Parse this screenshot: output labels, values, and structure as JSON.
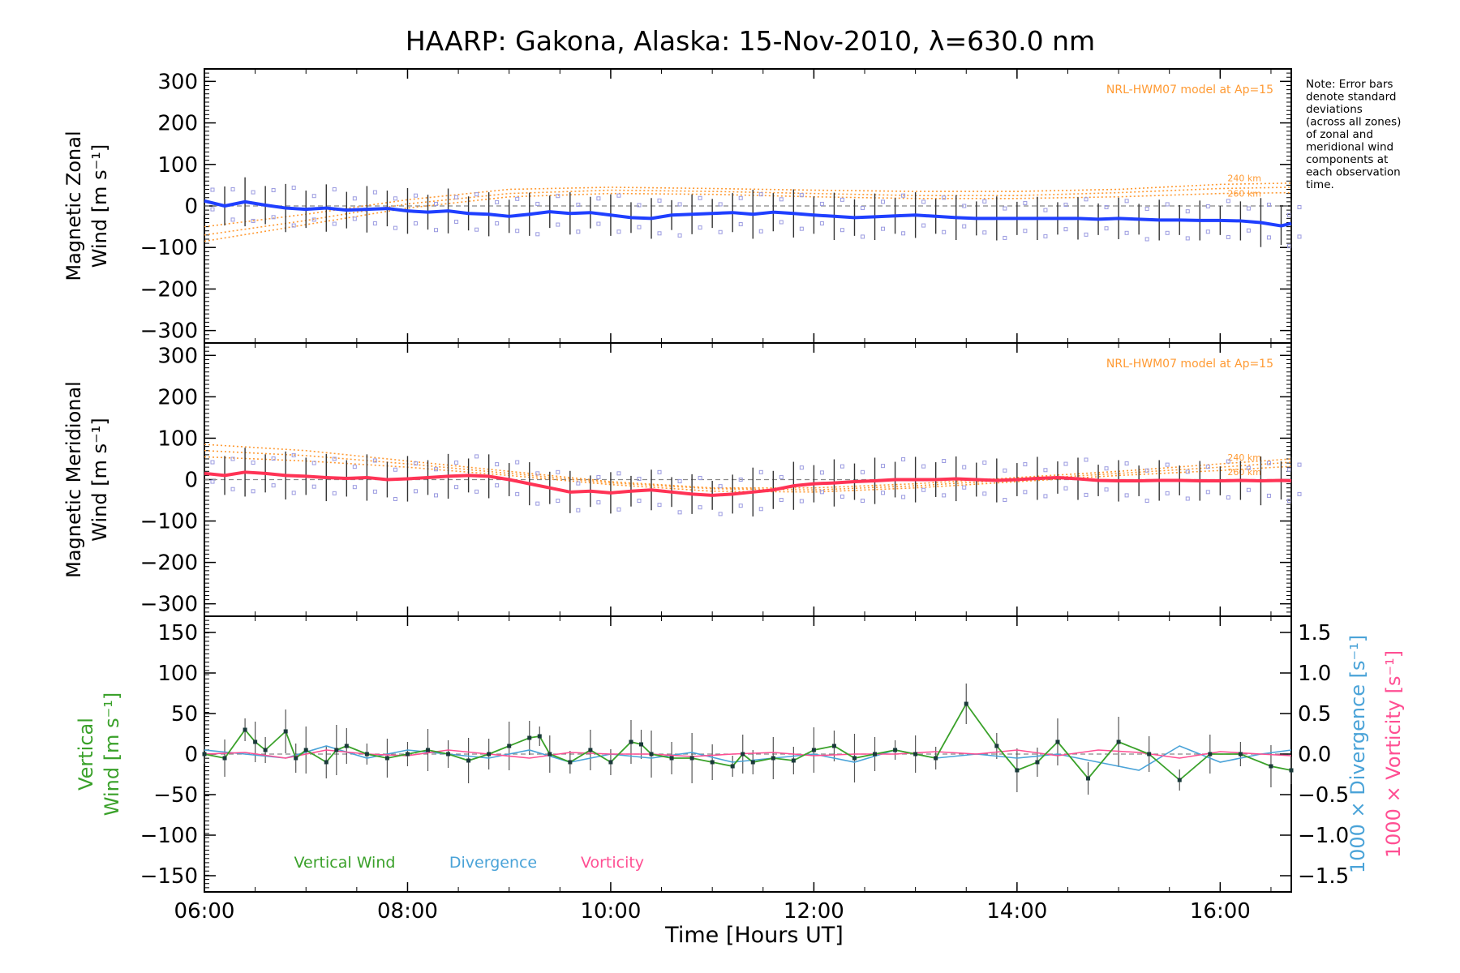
{
  "title": "HAARP: Gakona,  Alaska: 15-Nov-2010, λ=630.0 nm",
  "note": [
    "Note: Error bars",
    "denote standard",
    "deviations",
    "(across all zones)",
    "of zonal and",
    "meridional wind",
    "components at",
    "each observation",
    "time."
  ],
  "xlabel": "Time [Hours UT]",
  "colors": {
    "zonal": "#1f3fff",
    "meridional": "#ff3355",
    "vertical": "#3aa12a",
    "divergence": "#4aa3d8",
    "vorticity": "#ff4f93",
    "model": "#ff9a33",
    "scatter": "#9a9ae0",
    "errorbar": "#333333"
  },
  "chart_data": [
    {
      "type": "line",
      "panel": "zonal",
      "ylabel_lines": [
        "Magnetic Zonal",
        "Wind [m s⁻¹]"
      ],
      "xlim": [
        6.0,
        16.7
      ],
      "ylim": [
        -330,
        330
      ],
      "x_tick_labels": [
        "06:00",
        "08:00",
        "10:00",
        "12:00",
        "14:00",
        "16:00"
      ],
      "y_tick_labels": [
        "300",
        "200",
        "100",
        "0",
        "−100",
        "−200",
        "−300"
      ],
      "annotation": "NRL-HWM07 model at Ap=15",
      "model_labels": [
        "240 km",
        "260 km"
      ],
      "series": [
        {
          "name": "",
          "x": [
            6.0,
            6.2,
            6.4,
            6.6,
            6.8,
            7.0,
            7.2,
            7.4,
            7.6,
            7.8,
            8.0,
            8.2,
            8.4,
            8.6,
            8.8,
            9.0,
            9.2,
            9.4,
            9.6,
            9.8,
            10.0,
            10.2,
            10.4,
            10.6,
            10.8,
            11.0,
            11.2,
            11.4,
            11.6,
            11.8,
            12.0,
            12.2,
            12.4,
            12.6,
            12.8,
            13.0,
            13.2,
            13.4,
            13.6,
            13.8,
            14.0,
            14.2,
            14.4,
            14.6,
            14.8,
            15.0,
            15.2,
            15.4,
            15.6,
            15.8,
            16.0,
            16.2,
            16.4,
            16.6,
            16.7
          ],
          "values": [
            12,
            0,
            10,
            2,
            -5,
            -8,
            -5,
            -10,
            -8,
            -6,
            -12,
            -15,
            -12,
            -18,
            -20,
            -25,
            -20,
            -14,
            -18,
            -16,
            -22,
            -28,
            -30,
            -22,
            -20,
            -18,
            -16,
            -20,
            -15,
            -18,
            -22,
            -25,
            -28,
            -26,
            -24,
            -22,
            -25,
            -28,
            -30,
            -30,
            -30,
            -30,
            -30,
            -30,
            -32,
            -30,
            -32,
            -34,
            -34,
            -35,
            -35,
            -36,
            -40,
            -48,
            -42
          ]
        }
      ],
      "model": {
        "x": [
          6.0,
          7.0,
          8.0,
          9.0,
          10.0,
          11.0,
          12.0,
          13.0,
          14.0,
          15.0,
          16.0,
          16.7
        ],
        "curves": [
          {
            "name": "240 km",
            "values": [
              -50,
              -20,
              15,
              40,
              45,
              42,
              38,
              35,
              35,
              40,
              52,
              55
            ]
          },
          {
            "name": "260 km",
            "values": [
              -70,
              -35,
              5,
              30,
              38,
              35,
              30,
              25,
              25,
              32,
              42,
              45
            ]
          },
          {
            "name": "",
            "values": [
              -85,
              -45,
              -5,
              22,
              30,
              28,
              22,
              18,
              18,
              22,
              30,
              32
            ]
          }
        ]
      }
    },
    {
      "type": "line",
      "panel": "meridional",
      "ylabel_lines": [
        "Magnetic Meridional",
        "Wind [m s⁻¹]"
      ],
      "xlim": [
        6.0,
        16.7
      ],
      "ylim": [
        -330,
        330
      ],
      "y_tick_labels": [
        "300",
        "200",
        "100",
        "0",
        "−100",
        "−200",
        "−300"
      ],
      "annotation": "NRL-HWM07 model at Ap=15",
      "model_labels": [
        "240 km",
        "260 km"
      ],
      "series": [
        {
          "name": "",
          "x": [
            6.0,
            6.2,
            6.4,
            6.6,
            6.8,
            7.0,
            7.2,
            7.4,
            7.6,
            7.8,
            8.0,
            8.2,
            8.4,
            8.6,
            8.8,
            9.0,
            9.2,
            9.4,
            9.6,
            9.8,
            10.0,
            10.2,
            10.4,
            10.6,
            10.8,
            11.0,
            11.2,
            11.4,
            11.6,
            11.8,
            12.0,
            12.2,
            12.4,
            12.6,
            12.8,
            13.0,
            13.2,
            13.4,
            13.6,
            13.8,
            14.0,
            14.2,
            14.4,
            14.6,
            14.8,
            15.0,
            15.2,
            15.4,
            15.6,
            15.8,
            16.0,
            16.2,
            16.4,
            16.6,
            16.7
          ],
          "values": [
            15,
            10,
            18,
            15,
            10,
            8,
            5,
            3,
            5,
            0,
            2,
            5,
            8,
            10,
            8,
            0,
            -10,
            -20,
            -30,
            -28,
            -32,
            -28,
            -25,
            -30,
            -35,
            -38,
            -35,
            -30,
            -25,
            -15,
            -10,
            -8,
            -5,
            -3,
            0,
            0,
            0,
            2,
            0,
            -2,
            0,
            3,
            5,
            2,
            -2,
            -3,
            -3,
            -2,
            -2,
            -3,
            -3,
            -2,
            -3,
            -2,
            -3
          ]
        }
      ],
      "model": {
        "x": [
          6.0,
          7.0,
          8.0,
          9.0,
          10.0,
          11.0,
          12.0,
          13.0,
          14.0,
          15.0,
          16.0,
          16.7
        ],
        "curves": [
          {
            "name": "240 km",
            "values": [
              85,
              70,
              45,
              20,
              -5,
              -20,
              -20,
              -10,
              5,
              20,
              38,
              50
            ]
          },
          {
            "name": "260 km",
            "values": [
              70,
              58,
              38,
              15,
              -8,
              -22,
              -25,
              -15,
              0,
              15,
              30,
              42
            ]
          },
          {
            "name": "",
            "values": [
              55,
              45,
              30,
              10,
              -12,
              -28,
              -30,
              -20,
              -5,
              10,
              22,
              32
            ]
          }
        ]
      }
    },
    {
      "type": "line",
      "panel": "vertical",
      "ylabel_lines": [
        "Vertical",
        "Wind [m s⁻¹]"
      ],
      "y2label_lines": [
        "1000 × Divergence [s⁻¹]",
        "1000 × Vorticity [s⁻¹]"
      ],
      "xlim": [
        6.0,
        16.7
      ],
      "ylim": [
        -170,
        170
      ],
      "y2lim": [
        -1.7,
        1.7
      ],
      "y_tick_labels": [
        "150",
        "100",
        "50",
        "0",
        "−50",
        "−100",
        "−150"
      ],
      "y2_tick_labels": [
        "1.5",
        "1.0",
        "0.5",
        "0.0",
        "−0.5",
        "−1.0",
        "−1.5"
      ],
      "legend": [
        "Vertical Wind",
        "Divergence",
        "Vorticity"
      ],
      "series": [
        {
          "name": "Vertical Wind",
          "x": [
            6.0,
            6.2,
            6.4,
            6.5,
            6.6,
            6.8,
            6.9,
            7.0,
            7.2,
            7.3,
            7.4,
            7.6,
            7.8,
            8.0,
            8.2,
            8.4,
            8.6,
            8.8,
            9.0,
            9.2,
            9.3,
            9.4,
            9.6,
            9.8,
            10.0,
            10.2,
            10.3,
            10.4,
            10.6,
            10.8,
            11.0,
            11.2,
            11.3,
            11.4,
            11.6,
            11.8,
            12.0,
            12.2,
            12.4,
            12.6,
            12.8,
            13.0,
            13.2,
            13.5,
            13.8,
            14.0,
            14.2,
            14.4,
            14.7,
            15.0,
            15.3,
            15.6,
            15.9,
            16.2,
            16.5,
            16.7
          ],
          "values": [
            0,
            -5,
            30,
            15,
            5,
            28,
            -5,
            5,
            -10,
            5,
            10,
            0,
            -5,
            0,
            5,
            0,
            -8,
            0,
            10,
            20,
            22,
            0,
            -10,
            5,
            -10,
            15,
            12,
            0,
            -5,
            -5,
            -10,
            -15,
            0,
            -10,
            -5,
            -8,
            5,
            10,
            -5,
            0,
            5,
            0,
            -5,
            62,
            10,
            -20,
            -10,
            15,
            -30,
            15,
            0,
            -32,
            0,
            0,
            -15,
            -20
          ]
        },
        {
          "name": "Divergence",
          "x": [
            6.0,
            6.4,
            6.8,
            7.2,
            7.6,
            8.0,
            8.4,
            8.8,
            9.2,
            9.6,
            10.0,
            10.4,
            10.8,
            11.2,
            11.6,
            12.0,
            12.4,
            12.8,
            13.2,
            13.6,
            14.0,
            14.4,
            14.8,
            15.2,
            15.6,
            16.0,
            16.4,
            16.7
          ],
          "values": [
            0.05,
            0.0,
            -0.05,
            0.1,
            -0.05,
            0.05,
            0.0,
            -0.05,
            0.05,
            -0.1,
            0.0,
            -0.05,
            0.02,
            -0.1,
            -0.05,
            0.0,
            -0.1,
            0.05,
            -0.05,
            0.0,
            -0.05,
            0.0,
            -0.1,
            -0.2,
            0.1,
            -0.1,
            0.0,
            0.05
          ]
        },
        {
          "name": "Vorticity",
          "x": [
            6.0,
            6.4,
            6.8,
            7.2,
            7.6,
            8.0,
            8.4,
            8.8,
            9.2,
            9.6,
            10.0,
            10.4,
            10.8,
            11.2,
            11.6,
            12.0,
            12.4,
            12.8,
            13.2,
            13.6,
            14.0,
            14.4,
            14.8,
            15.2,
            15.6,
            16.0,
            16.4,
            16.7
          ],
          "values": [
            0.0,
            0.02,
            -0.05,
            0.05,
            0.0,
            -0.02,
            0.05,
            0.0,
            -0.05,
            0.02,
            0.0,
            0.0,
            -0.03,
            0.0,
            0.02,
            -0.02,
            0.0,
            0.0,
            0.03,
            0.0,
            0.05,
            -0.02,
            0.05,
            0.02,
            -0.05,
            0.03,
            0.0,
            -0.02
          ]
        }
      ]
    }
  ]
}
